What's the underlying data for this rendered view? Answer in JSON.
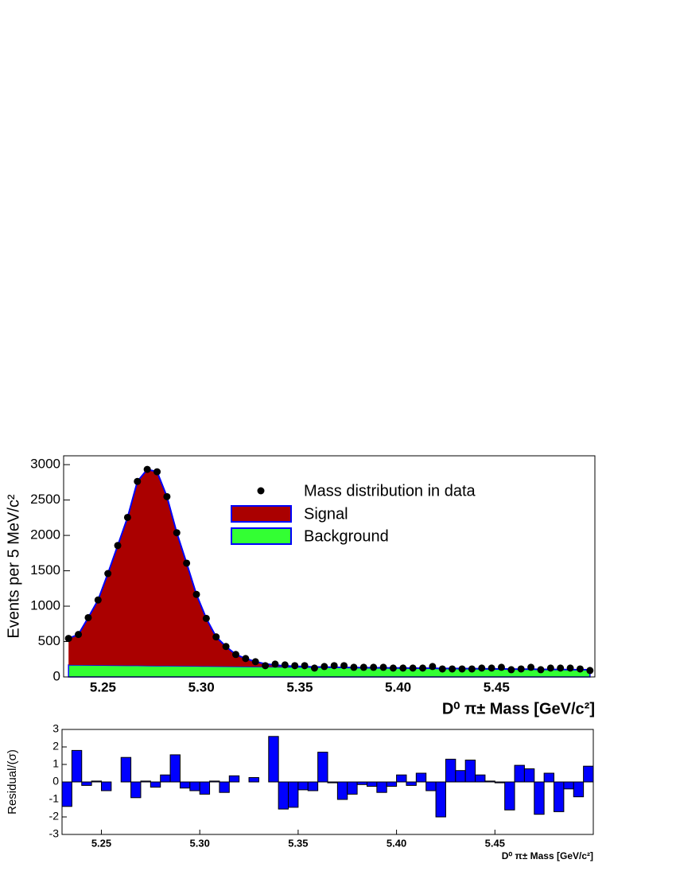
{
  "chart_data": [
    {
      "type": "fit",
      "x_label": "D⁰ π± Mass [GeV/c²]",
      "y_label": "Events per 5 MeV/c²",
      "x": [
        5.2325,
        5.2375,
        5.2425,
        5.2475,
        5.2525,
        5.2575,
        5.2625,
        5.2675,
        5.2725,
        5.2775,
        5.2825,
        5.2875,
        5.2925,
        5.2975,
        5.3025,
        5.3075,
        5.3125,
        5.3175,
        5.3225,
        5.3275,
        5.3325,
        5.3375,
        5.3425,
        5.3475,
        5.3525,
        5.3575,
        5.3625,
        5.3675,
        5.3725,
        5.3775,
        5.3825,
        5.3875,
        5.3925,
        5.3975,
        5.4025,
        5.4075,
        5.4125,
        5.4175,
        5.4225,
        5.4275,
        5.4325,
        5.4375,
        5.4425,
        5.4475,
        5.4525,
        5.4575,
        5.4625,
        5.4675,
        5.4725,
        5.4775,
        5.4825,
        5.4875,
        5.4925,
        5.4975
      ],
      "series": [
        {
          "name": "Mass distribution in data",
          "color": "#000000",
          "values": [
            544,
            600,
            838,
            1087,
            1461,
            1857,
            2254,
            2763,
            2933,
            2899,
            2548,
            2038,
            1608,
            1166,
            827,
            566,
            430,
            317,
            260,
            215,
            159,
            181,
            170,
            159,
            159,
            125,
            147,
            159,
            159,
            136,
            136,
            136,
            136,
            125,
            125,
            125,
            125,
            147,
            113,
            113,
            113,
            113,
            125,
            125,
            136,
            102,
            113,
            136,
            102,
            125,
            125,
            125,
            113,
            91
          ]
        },
        {
          "name": "Signal",
          "color": "#aa0000",
          "values": [
            374,
            431,
            671,
            921,
            1296,
            1694,
            2092,
            2602,
            2774,
            2741,
            2391,
            1882,
            1454,
            1013,
            675,
            416,
            281,
            169,
            114,
            70,
            40,
            25,
            15,
            10,
            6,
            4,
            3,
            2,
            1,
            0,
            0,
            0,
            0,
            0,
            0,
            0,
            0,
            0,
            0,
            0,
            0,
            0,
            0,
            0,
            0,
            0,
            0,
            0,
            0,
            0,
            0,
            0,
            0,
            0
          ]
        },
        {
          "name": "Background",
          "color": "#33ff33",
          "values": [
            170,
            169,
            167,
            166,
            165,
            163,
            162,
            161,
            159,
            158,
            157,
            156,
            154,
            153,
            152,
            150,
            149,
            148,
            146,
            145,
            144,
            142,
            141,
            140,
            139,
            137,
            136,
            135,
            133,
            132,
            131,
            129,
            128,
            127,
            126,
            124,
            123,
            122,
            120,
            119,
            118,
            116,
            115,
            114,
            113,
            111,
            110,
            109,
            107,
            106,
            105,
            103,
            102,
            101
          ]
        }
      ],
      "curve_color": "#0000ff",
      "xlim": [
        5.23,
        5.5
      ],
      "ylim": [
        0,
        3125
      ],
      "xticks": [
        5.25,
        {
          "value": 5.3,
          "label": "5.30"
        },
        5.35,
        {
          "value": 5.4,
          "label": "5.40"
        },
        5.45
      ],
      "yticks": [
        0,
        500,
        1000,
        1500,
        2000,
        2500,
        3000
      ]
    },
    {
      "type": "bar",
      "x_label": "D⁰ π± Mass [GeV/c²]",
      "y_label": "Residual/(σ)",
      "x": [
        5.2325,
        5.2375,
        5.2425,
        5.2475,
        5.2525,
        5.2575,
        5.2625,
        5.2675,
        5.2725,
        5.2775,
        5.2825,
        5.2875,
        5.2925,
        5.2975,
        5.3025,
        5.3075,
        5.3125,
        5.3175,
        5.3225,
        5.3275,
        5.3325,
        5.3375,
        5.3425,
        5.3475,
        5.3525,
        5.3575,
        5.3625,
        5.3675,
        5.3725,
        5.3775,
        5.3825,
        5.3875,
        5.3925,
        5.3975,
        5.4025,
        5.4075,
        5.4125,
        5.4175,
        5.4225,
        5.4275,
        5.4325,
        5.4375,
        5.4425,
        5.4475,
        5.4525,
        5.4575,
        5.4625,
        5.4675,
        5.4725,
        5.4775,
        5.4825,
        5.4875,
        5.4925,
        5.4975
      ],
      "values": [
        -1.4,
        1.8,
        -0.2,
        0.05,
        -0.5,
        0.0,
        1.4,
        -0.9,
        0.05,
        -0.3,
        0.4,
        1.55,
        -0.35,
        -0.5,
        -0.7,
        0.05,
        -0.6,
        0.35,
        0.0,
        0.25,
        0.0,
        2.6,
        -1.55,
        -1.45,
        -0.45,
        -0.5,
        1.7,
        -0.05,
        -1.0,
        -0.7,
        -0.15,
        -0.25,
        -0.6,
        -0.25,
        0.4,
        -0.2,
        0.5,
        -0.5,
        -2.0,
        1.3,
        0.65,
        1.25,
        0.4,
        0.05,
        -0.05,
        -1.6,
        0.95,
        0.75,
        -1.85,
        0.5,
        -1.7,
        -0.4,
        -0.85,
        0.9
      ],
      "color": "#0000ff",
      "xlim": [
        5.23,
        5.5
      ],
      "ylim": [
        -3,
        3
      ],
      "xticks": [
        5.25,
        {
          "value": 5.3,
          "label": "5.30"
        },
        5.35,
        {
          "value": 5.4,
          "label": "5.40"
        },
        5.45
      ],
      "yticks": [
        -3,
        -2,
        -1,
        0,
        1,
        2,
        3
      ]
    }
  ]
}
